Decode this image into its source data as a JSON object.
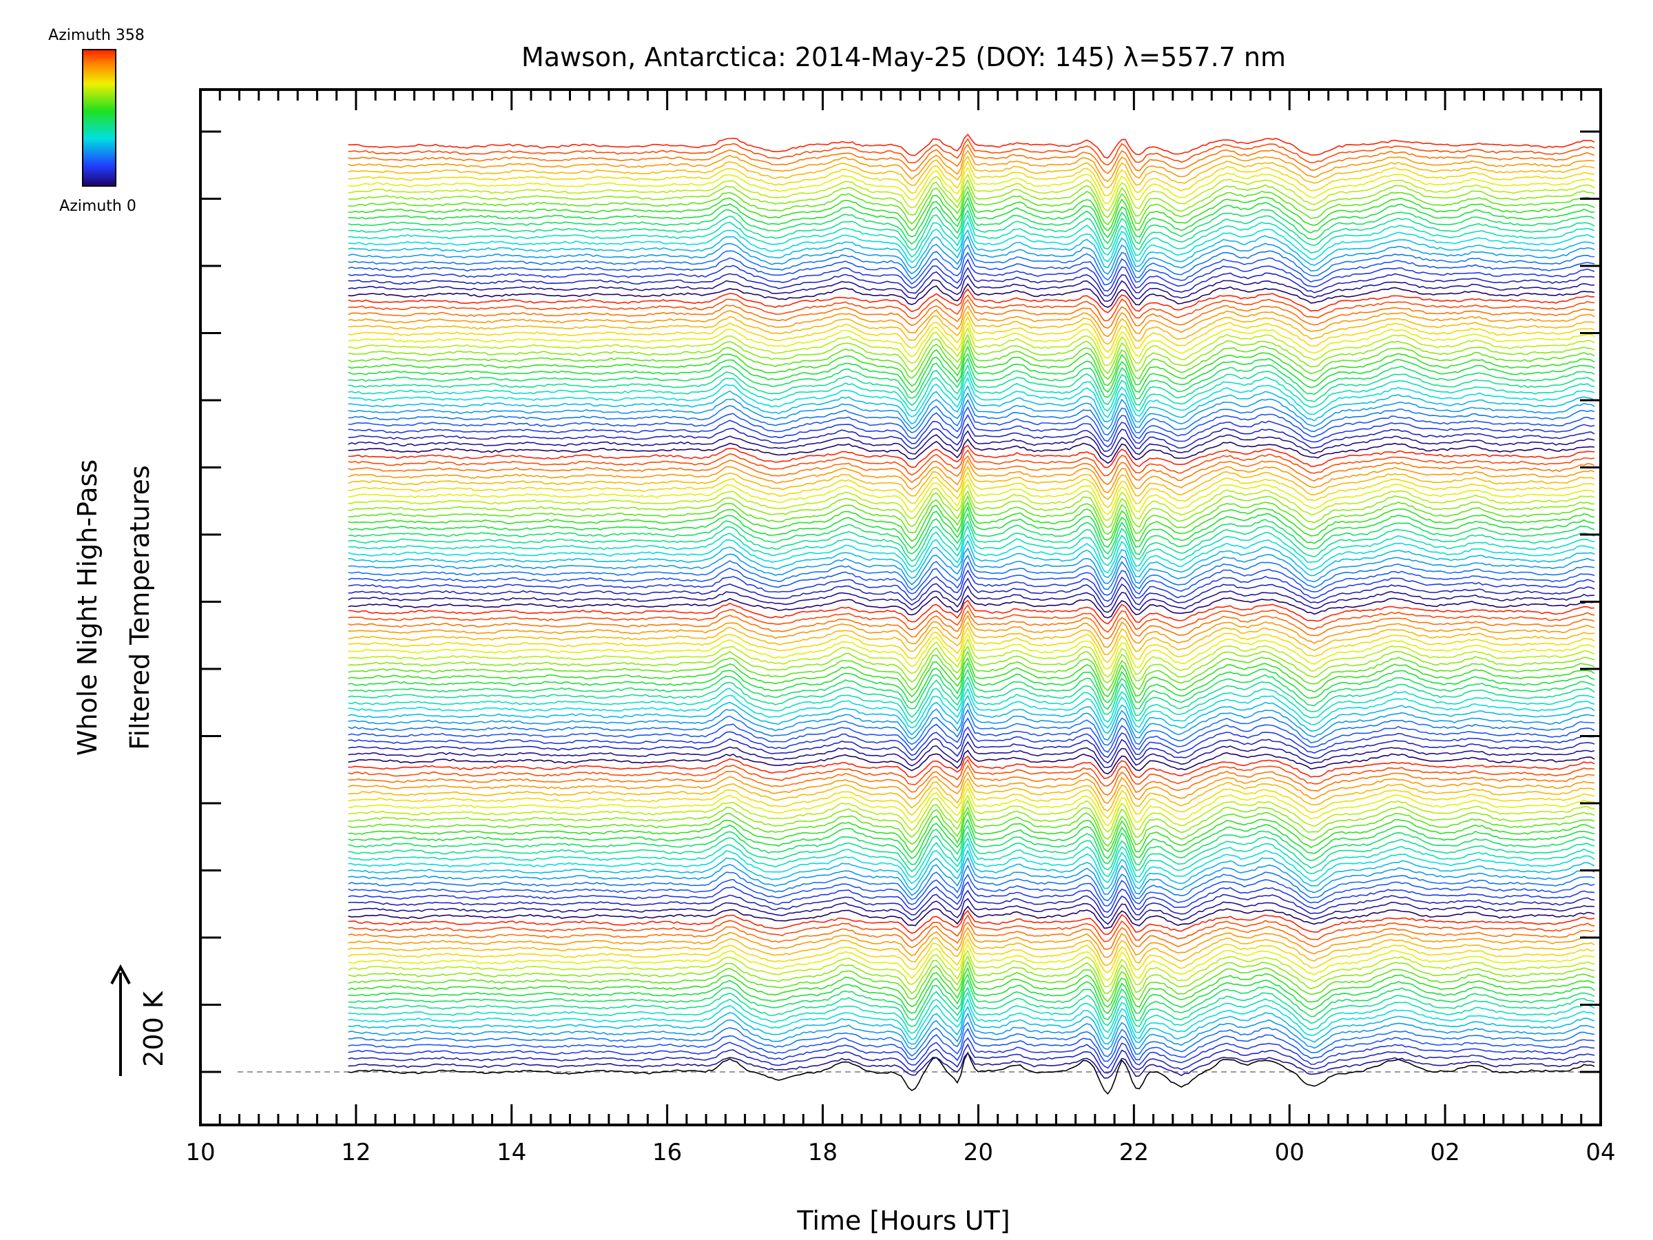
{
  "chart_data": {
    "type": "line",
    "title": "Mawson, Antarctica: 2014-May-25 (DOY: 145) λ=557.7 nm",
    "xlabel": "Time [Hours UT]",
    "ylabel_line1": "Whole Night High-Pass",
    "ylabel_line2": "Filtered Temperatures",
    "scale_label": "200 K",
    "x_range_hours": [
      10,
      28
    ],
    "data_start_hour": 11.9,
    "data_end_hour": 27.95,
    "x_tick_labels": [
      {
        "hour": 10,
        "label": "10"
      },
      {
        "hour": 12,
        "label": "12"
      },
      {
        "hour": 14,
        "label": "14"
      },
      {
        "hour": 16,
        "label": "16"
      },
      {
        "hour": 18,
        "label": "18"
      },
      {
        "hour": 20,
        "label": "20"
      },
      {
        "hour": 22,
        "label": "22"
      },
      {
        "hour": 24,
        "label": "00"
      },
      {
        "hour": 26,
        "label": "02"
      },
      {
        "hour": 28,
        "label": "04"
      }
    ],
    "azimuth_min": 0,
    "azimuth_max": 358,
    "azimuth_colorbar": {
      "top_label": "Azimuth 358",
      "bottom_label": "Azimuth 0"
    },
    "series_count": 144,
    "azimuth_cycle_length": 24,
    "colormap": "rainbow (blue = azimuth 0, red = azimuth 358)",
    "baseline_color": "#000000",
    "events": [
      {
        "hour": 16.8,
        "amplitude": 35,
        "width": 0.18
      },
      {
        "hour": 17.4,
        "amplitude": -20,
        "width": 0.25
      },
      {
        "hour": 18.3,
        "amplitude": 25,
        "width": 0.2
      },
      {
        "hour": 19.15,
        "amplitude": -50,
        "width": 0.12
      },
      {
        "hour": 19.45,
        "amplitude": 40,
        "width": 0.1
      },
      {
        "hour": 19.75,
        "amplitude": -30,
        "width": 0.08
      },
      {
        "hour": 19.85,
        "amplitude": 60,
        "width": 0.07
      },
      {
        "hour": 20.5,
        "amplitude": 20,
        "width": 0.15
      },
      {
        "hour": 21.4,
        "amplitude": 30,
        "width": 0.15
      },
      {
        "hour": 21.65,
        "amplitude": -55,
        "width": 0.12
      },
      {
        "hour": 21.85,
        "amplitude": 35,
        "width": 0.08
      },
      {
        "hour": 22.05,
        "amplitude": -50,
        "width": 0.1
      },
      {
        "hour": 22.6,
        "amplitude": -35,
        "width": 0.2
      },
      {
        "hour": 23.2,
        "amplitude": 30,
        "width": 0.2
      },
      {
        "hour": 23.7,
        "amplitude": 35,
        "width": 0.25
      },
      {
        "hour": 24.3,
        "amplitude": -40,
        "width": 0.2
      },
      {
        "hour": 25.4,
        "amplitude": 30,
        "width": 0.3
      },
      {
        "hour": 26.4,
        "amplitude": 15,
        "width": 0.2
      },
      {
        "hour": 27.8,
        "amplitude": 20,
        "width": 0.2
      }
    ]
  }
}
